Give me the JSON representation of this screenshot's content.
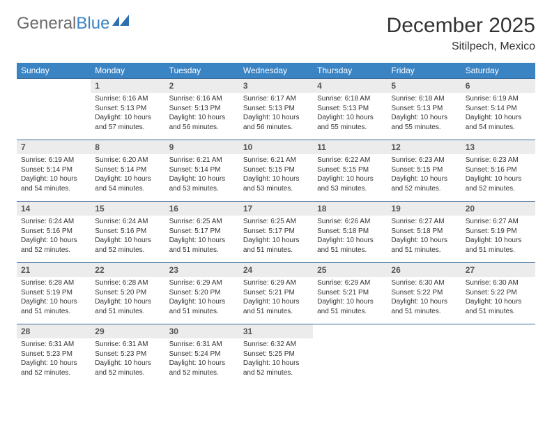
{
  "brand": {
    "part1": "General",
    "part2": "Blue"
  },
  "title": "December 2025",
  "location": "Sitilpech, Mexico",
  "colors": {
    "header_bg": "#3b84c4",
    "header_fg": "#ffffff",
    "row_border": "#3b6a9a",
    "daynum_bg": "#ececec",
    "text": "#333333",
    "logo_gray": "#6b6b6b",
    "logo_blue": "#3b84c4"
  },
  "weekdays": [
    "Sunday",
    "Monday",
    "Tuesday",
    "Wednesday",
    "Thursday",
    "Friday",
    "Saturday"
  ],
  "weeks": [
    [
      {
        "n": "",
        "sr": "",
        "ss": "",
        "dl": ""
      },
      {
        "n": "1",
        "sr": "Sunrise: 6:16 AM",
        "ss": "Sunset: 5:13 PM",
        "dl": "Daylight: 10 hours and 57 minutes."
      },
      {
        "n": "2",
        "sr": "Sunrise: 6:16 AM",
        "ss": "Sunset: 5:13 PM",
        "dl": "Daylight: 10 hours and 56 minutes."
      },
      {
        "n": "3",
        "sr": "Sunrise: 6:17 AM",
        "ss": "Sunset: 5:13 PM",
        "dl": "Daylight: 10 hours and 56 minutes."
      },
      {
        "n": "4",
        "sr": "Sunrise: 6:18 AM",
        "ss": "Sunset: 5:13 PM",
        "dl": "Daylight: 10 hours and 55 minutes."
      },
      {
        "n": "5",
        "sr": "Sunrise: 6:18 AM",
        "ss": "Sunset: 5:13 PM",
        "dl": "Daylight: 10 hours and 55 minutes."
      },
      {
        "n": "6",
        "sr": "Sunrise: 6:19 AM",
        "ss": "Sunset: 5:14 PM",
        "dl": "Daylight: 10 hours and 54 minutes."
      }
    ],
    [
      {
        "n": "7",
        "sr": "Sunrise: 6:19 AM",
        "ss": "Sunset: 5:14 PM",
        "dl": "Daylight: 10 hours and 54 minutes."
      },
      {
        "n": "8",
        "sr": "Sunrise: 6:20 AM",
        "ss": "Sunset: 5:14 PM",
        "dl": "Daylight: 10 hours and 54 minutes."
      },
      {
        "n": "9",
        "sr": "Sunrise: 6:21 AM",
        "ss": "Sunset: 5:14 PM",
        "dl": "Daylight: 10 hours and 53 minutes."
      },
      {
        "n": "10",
        "sr": "Sunrise: 6:21 AM",
        "ss": "Sunset: 5:15 PM",
        "dl": "Daylight: 10 hours and 53 minutes."
      },
      {
        "n": "11",
        "sr": "Sunrise: 6:22 AM",
        "ss": "Sunset: 5:15 PM",
        "dl": "Daylight: 10 hours and 53 minutes."
      },
      {
        "n": "12",
        "sr": "Sunrise: 6:23 AM",
        "ss": "Sunset: 5:15 PM",
        "dl": "Daylight: 10 hours and 52 minutes."
      },
      {
        "n": "13",
        "sr": "Sunrise: 6:23 AM",
        "ss": "Sunset: 5:16 PM",
        "dl": "Daylight: 10 hours and 52 minutes."
      }
    ],
    [
      {
        "n": "14",
        "sr": "Sunrise: 6:24 AM",
        "ss": "Sunset: 5:16 PM",
        "dl": "Daylight: 10 hours and 52 minutes."
      },
      {
        "n": "15",
        "sr": "Sunrise: 6:24 AM",
        "ss": "Sunset: 5:16 PM",
        "dl": "Daylight: 10 hours and 52 minutes."
      },
      {
        "n": "16",
        "sr": "Sunrise: 6:25 AM",
        "ss": "Sunset: 5:17 PM",
        "dl": "Daylight: 10 hours and 51 minutes."
      },
      {
        "n": "17",
        "sr": "Sunrise: 6:25 AM",
        "ss": "Sunset: 5:17 PM",
        "dl": "Daylight: 10 hours and 51 minutes."
      },
      {
        "n": "18",
        "sr": "Sunrise: 6:26 AM",
        "ss": "Sunset: 5:18 PM",
        "dl": "Daylight: 10 hours and 51 minutes."
      },
      {
        "n": "19",
        "sr": "Sunrise: 6:27 AM",
        "ss": "Sunset: 5:18 PM",
        "dl": "Daylight: 10 hours and 51 minutes."
      },
      {
        "n": "20",
        "sr": "Sunrise: 6:27 AM",
        "ss": "Sunset: 5:19 PM",
        "dl": "Daylight: 10 hours and 51 minutes."
      }
    ],
    [
      {
        "n": "21",
        "sr": "Sunrise: 6:28 AM",
        "ss": "Sunset: 5:19 PM",
        "dl": "Daylight: 10 hours and 51 minutes."
      },
      {
        "n": "22",
        "sr": "Sunrise: 6:28 AM",
        "ss": "Sunset: 5:20 PM",
        "dl": "Daylight: 10 hours and 51 minutes."
      },
      {
        "n": "23",
        "sr": "Sunrise: 6:29 AM",
        "ss": "Sunset: 5:20 PM",
        "dl": "Daylight: 10 hours and 51 minutes."
      },
      {
        "n": "24",
        "sr": "Sunrise: 6:29 AM",
        "ss": "Sunset: 5:21 PM",
        "dl": "Daylight: 10 hours and 51 minutes."
      },
      {
        "n": "25",
        "sr": "Sunrise: 6:29 AM",
        "ss": "Sunset: 5:21 PM",
        "dl": "Daylight: 10 hours and 51 minutes."
      },
      {
        "n": "26",
        "sr": "Sunrise: 6:30 AM",
        "ss": "Sunset: 5:22 PM",
        "dl": "Daylight: 10 hours and 51 minutes."
      },
      {
        "n": "27",
        "sr": "Sunrise: 6:30 AM",
        "ss": "Sunset: 5:22 PM",
        "dl": "Daylight: 10 hours and 51 minutes."
      }
    ],
    [
      {
        "n": "28",
        "sr": "Sunrise: 6:31 AM",
        "ss": "Sunset: 5:23 PM",
        "dl": "Daylight: 10 hours and 52 minutes."
      },
      {
        "n": "29",
        "sr": "Sunrise: 6:31 AM",
        "ss": "Sunset: 5:23 PM",
        "dl": "Daylight: 10 hours and 52 minutes."
      },
      {
        "n": "30",
        "sr": "Sunrise: 6:31 AM",
        "ss": "Sunset: 5:24 PM",
        "dl": "Daylight: 10 hours and 52 minutes."
      },
      {
        "n": "31",
        "sr": "Sunrise: 6:32 AM",
        "ss": "Sunset: 5:25 PM",
        "dl": "Daylight: 10 hours and 52 minutes."
      },
      {
        "n": "",
        "sr": "",
        "ss": "",
        "dl": ""
      },
      {
        "n": "",
        "sr": "",
        "ss": "",
        "dl": ""
      },
      {
        "n": "",
        "sr": "",
        "ss": "",
        "dl": ""
      }
    ]
  ]
}
